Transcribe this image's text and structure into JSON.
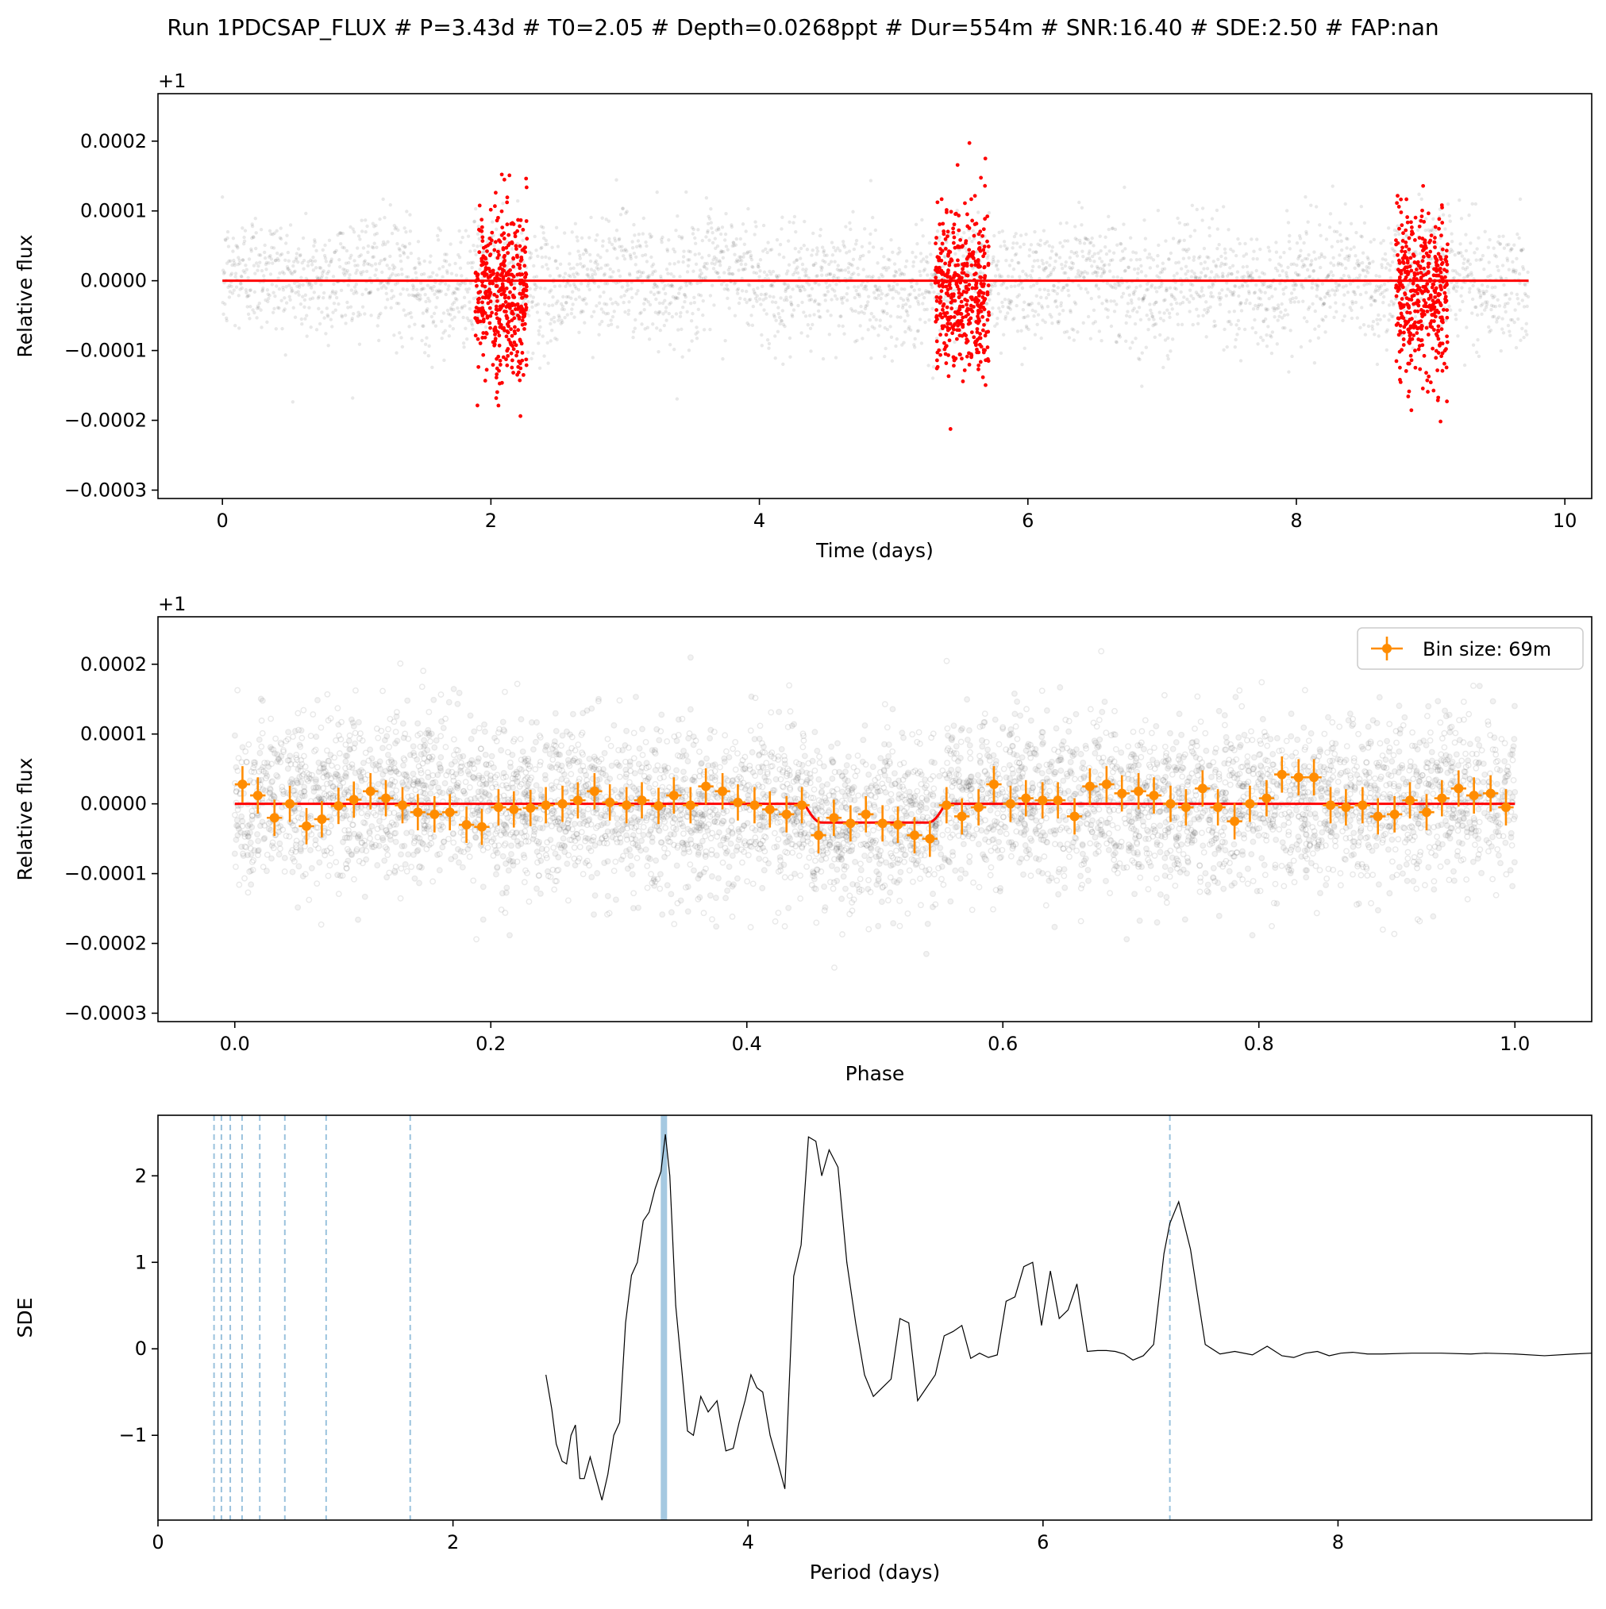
{
  "suptitle": "Run 1PDCSAP_FLUX # P=3.43d # T0=2.05 # Depth=0.0268ppt # Dur=554m # SNR:16.40 # SDE:2.50 # FAP:nan",
  "colors": {
    "raw_points": "#000000",
    "in_transit": "#ff0000",
    "model": "#ff0000",
    "binned": "#ff8c00",
    "period_marker": "#1f77b4",
    "sde_line": "#000000"
  },
  "chart_data": [
    {
      "type": "scatter",
      "id": "light_curve",
      "xlabel": "Time (days)",
      "ylabel": "Relative flux",
      "offset_label": "+1",
      "xlim": [
        -0.48,
        10.2
      ],
      "ylim": [
        -0.000312,
        0.000268
      ],
      "xticks": [
        0,
        2,
        4,
        6,
        8,
        10
      ],
      "xtick_labels": [
        "0",
        "2",
        "4",
        "6",
        "8",
        "10"
      ],
      "yticks": [
        -0.0003,
        -0.0002,
        -0.0001,
        0.0,
        0.0001,
        0.0002
      ],
      "ytick_labels": [
        "−0.0003",
        "−0.0002",
        "−0.0001",
        "0.0000",
        "0.0001",
        "0.0002"
      ],
      "time_range": [
        0.0,
        9.73
      ],
      "scatter_sigma": 6e-05,
      "in_transit_windows": [
        [
          1.88,
          2.27
        ],
        [
          5.31,
          5.71
        ],
        [
          8.74,
          9.13
        ]
      ],
      "model": {
        "x": [
          0.0,
          9.73
        ],
        "y": [
          0.0,
          0.0
        ]
      },
      "grid": false
    },
    {
      "type": "scatter",
      "id": "phase_fold",
      "xlabel": "Phase",
      "ylabel": "Relative flux",
      "offset_label": "+1",
      "xlim": [
        -0.06,
        1.06
      ],
      "ylim": [
        -0.000312,
        0.000268
      ],
      "xticks": [
        0.0,
        0.2,
        0.4,
        0.6,
        0.8,
        1.0
      ],
      "xtick_labels": [
        "0.0",
        "0.2",
        "0.4",
        "0.6",
        "0.8",
        "1.0"
      ],
      "yticks": [
        -0.0003,
        -0.0002,
        -0.0001,
        0.0,
        0.0001,
        0.0002
      ],
      "ytick_labels": [
        "−0.0003",
        "−0.0002",
        "−0.0001",
        "0.0000",
        "0.0001",
        "0.0002"
      ],
      "legend": {
        "label": "Bin size: 69m",
        "placement": "top-right"
      },
      "transit": {
        "phase_start": 0.445,
        "phase_end": 0.555,
        "depth": -2.68e-05
      },
      "binned": {
        "x": [
          0.006,
          0.018,
          0.031,
          0.043,
          0.056,
          0.068,
          0.081,
          0.093,
          0.106,
          0.118,
          0.131,
          0.143,
          0.156,
          0.168,
          0.181,
          0.193,
          0.206,
          0.218,
          0.231,
          0.243,
          0.256,
          0.268,
          0.281,
          0.293,
          0.306,
          0.318,
          0.331,
          0.343,
          0.356,
          0.368,
          0.381,
          0.393,
          0.406,
          0.418,
          0.431,
          0.443,
          0.456,
          0.468,
          0.481,
          0.493,
          0.506,
          0.518,
          0.531,
          0.543,
          0.556,
          0.568,
          0.581,
          0.593,
          0.606,
          0.618,
          0.631,
          0.643,
          0.656,
          0.668,
          0.681,
          0.693,
          0.706,
          0.718,
          0.731,
          0.743,
          0.756,
          0.768,
          0.781,
          0.793,
          0.806,
          0.818,
          0.831,
          0.843,
          0.856,
          0.868,
          0.881,
          0.893,
          0.906,
          0.918,
          0.931,
          0.943,
          0.956,
          0.968,
          0.981,
          0.993
        ],
        "y": [
          2.8e-05,
          1.2e-05,
          -2e-05,
          0.0,
          -3.2e-05,
          -2.2e-05,
          -3e-06,
          6e-06,
          1.8e-05,
          8e-06,
          -2e-06,
          -1.2e-05,
          -1.5e-05,
          -1.2e-05,
          -3e-05,
          -3.3e-05,
          -5e-06,
          -8e-06,
          -6e-06,
          -2e-06,
          0.0,
          5e-06,
          1.8e-05,
          2e-06,
          -2e-06,
          5e-06,
          -3e-06,
          1.2e-05,
          -2e-06,
          2.5e-05,
          1.8e-05,
          2e-06,
          -2e-06,
          -8e-06,
          -1.5e-05,
          -2e-06,
          -4.5e-05,
          -2e-05,
          -2.8e-05,
          -1.5e-05,
          -2.8e-05,
          -3e-05,
          -4.5e-05,
          -5e-05,
          -2e-06,
          -1.8e-05,
          -5e-06,
          2.8e-05,
          0.0,
          8e-06,
          5e-06,
          5e-06,
          -1.8e-05,
          2.5e-05,
          2.8e-05,
          1.5e-05,
          1.8e-05,
          1.2e-05,
          0.0,
          -5e-06,
          2.2e-05,
          -5e-06,
          -2.5e-05,
          0.0,
          8e-06,
          4.2e-05,
          3.8e-05,
          3.8e-05,
          -2e-06,
          -5e-06,
          -2e-06,
          -1.8e-05,
          -1.5e-05,
          5e-06,
          -1.2e-05,
          8e-06,
          2.2e-05,
          1.2e-05,
          1.5e-05,
          -5e-06
        ],
        "yerr": 2.6e-05,
        "xerr": 0.006
      }
    },
    {
      "type": "line",
      "id": "periodogram",
      "xlabel": "Period (days)",
      "ylabel": "SDE",
      "xlim": [
        0.0,
        9.72
      ],
      "ylim": [
        -1.98,
        2.7
      ],
      "xticks": [
        0,
        2,
        4,
        6,
        8
      ],
      "xtick_labels": [
        "0",
        "2",
        "4",
        "6",
        "8"
      ],
      "yticks": [
        -1,
        0,
        1,
        2
      ],
      "ytick_labels": [
        "−1",
        "0",
        "1",
        "2"
      ],
      "best_period": 3.43,
      "harmonic_periods": [
        0.38,
        0.43,
        0.49,
        0.57,
        0.69,
        0.86,
        1.14,
        1.71,
        6.86
      ],
      "x": [
        2.63,
        2.67,
        2.7,
        2.74,
        2.77,
        2.8,
        2.83,
        2.86,
        2.89,
        2.93,
        2.97,
        3.01,
        3.05,
        3.09,
        3.13,
        3.17,
        3.21,
        3.25,
        3.29,
        3.33,
        3.37,
        3.41,
        3.44,
        3.47,
        3.51,
        3.55,
        3.59,
        3.63,
        3.68,
        3.73,
        3.79,
        3.85,
        3.9,
        3.94,
        3.98,
        4.02,
        4.06,
        4.1,
        4.15,
        4.2,
        4.25,
        4.31,
        4.36,
        4.41,
        4.46,
        4.5,
        4.55,
        4.61,
        4.67,
        4.73,
        4.79,
        4.85,
        4.91,
        4.97,
        5.03,
        5.09,
        5.15,
        5.21,
        5.27,
        5.33,
        5.39,
        5.45,
        5.51,
        5.57,
        5.63,
        5.69,
        5.75,
        5.81,
        5.87,
        5.93,
        5.99,
        6.05,
        6.11,
        6.17,
        6.23,
        6.3,
        6.37,
        6.43,
        6.49,
        6.55,
        6.61,
        6.68,
        6.75,
        6.82,
        6.86,
        6.92,
        7.0,
        7.1,
        7.2,
        7.3,
        7.42,
        7.52,
        7.62,
        7.7,
        7.78,
        7.86,
        7.94,
        8.02,
        8.1,
        8.2,
        8.3,
        8.5,
        8.7,
        8.9,
        9.0,
        9.2,
        9.4,
        9.6,
        9.72
      ],
      "y": [
        -0.3,
        -0.7,
        -1.1,
        -1.3,
        -1.33,
        -1.0,
        -0.88,
        -1.5,
        -1.5,
        -1.25,
        -1.5,
        -1.75,
        -1.45,
        -1.0,
        -0.85,
        0.3,
        0.85,
        1.0,
        1.48,
        1.58,
        1.85,
        2.05,
        2.48,
        2.0,
        0.5,
        -0.22,
        -0.95,
        -1.0,
        -0.55,
        -0.73,
        -0.6,
        -1.18,
        -1.15,
        -0.85,
        -0.6,
        -0.3,
        -0.45,
        -0.5,
        -1.0,
        -1.3,
        -1.62,
        0.84,
        1.2,
        2.45,
        2.4,
        2.0,
        2.3,
        2.1,
        1.0,
        0.3,
        -0.3,
        -0.55,
        -0.45,
        -0.35,
        0.35,
        0.3,
        -0.6,
        -0.45,
        -0.3,
        0.15,
        0.2,
        0.27,
        -0.11,
        -0.05,
        -0.1,
        -0.07,
        0.55,
        0.6,
        0.95,
        1.0,
        0.27,
        0.9,
        0.35,
        0.45,
        0.75,
        -0.03,
        -0.02,
        -0.02,
        -0.03,
        -0.06,
        -0.13,
        -0.08,
        0.05,
        1.1,
        1.45,
        1.7,
        1.15,
        0.05,
        -0.06,
        -0.03,
        -0.07,
        0.03,
        -0.08,
        -0.1,
        -0.05,
        -0.03,
        -0.08,
        -0.05,
        -0.04,
        -0.06,
        -0.06,
        -0.05,
        -0.05,
        -0.06,
        -0.05,
        -0.06,
        -0.08,
        -0.06,
        -0.05
      ]
    }
  ]
}
